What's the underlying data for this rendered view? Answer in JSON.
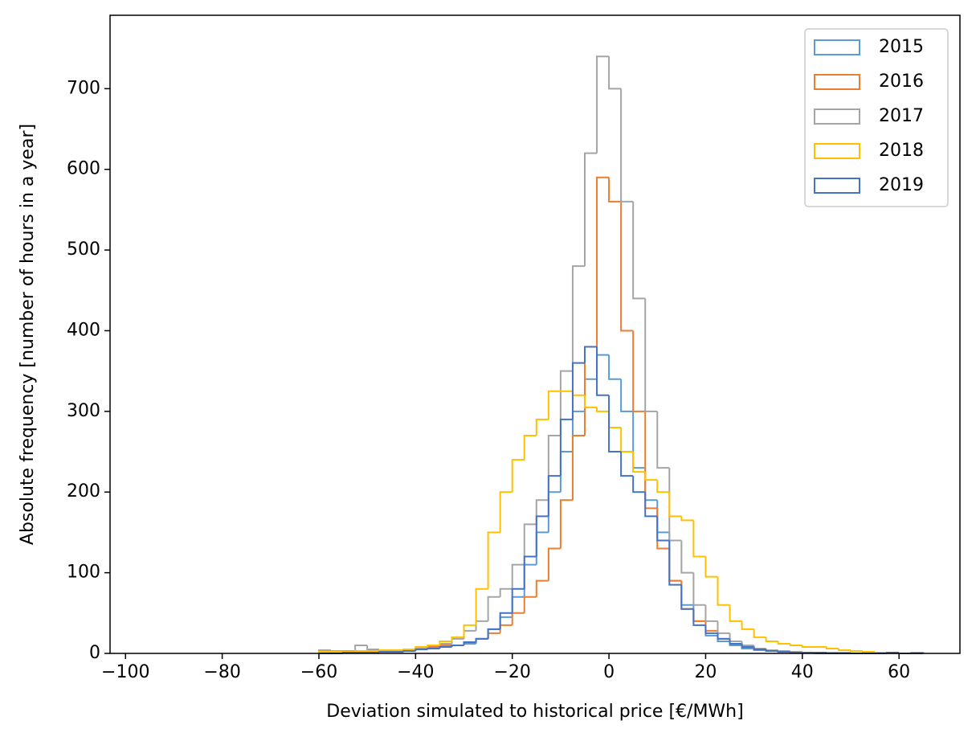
{
  "chart_data": {
    "type": "histogram",
    "xlabel": "Deviation simulated to historical price [€/MWh]",
    "ylabel": "Absolute frequency [number of hours in a year]",
    "bins": [
      -60,
      -57.5,
      -55,
      -52.5,
      -50,
      -47.5,
      -45,
      -42.5,
      -40,
      -37.5,
      -35,
      -32.5,
      -30,
      -27.5,
      -25,
      -22.5,
      -20,
      -17.5,
      -15,
      -12.5,
      -10,
      -7.5,
      -5,
      -2.5,
      0,
      2.5,
      5,
      7.5,
      10,
      12.5,
      15,
      17.5,
      20,
      22.5,
      25,
      27.5,
      30,
      32.5,
      35,
      37.5,
      40,
      42.5,
      45,
      47.5,
      50,
      52.5,
      55,
      57.5,
      60,
      62.5,
      65
    ],
    "series": [
      {
        "name": "2015",
        "color": "#5b9bd5",
        "values": [
          0,
          0,
          1,
          1,
          1,
          2,
          2,
          3,
          5,
          6,
          8,
          10,
          12,
          18,
          30,
          45,
          70,
          110,
          150,
          200,
          250,
          300,
          340,
          370,
          340,
          300,
          230,
          190,
          150,
          90,
          60,
          40,
          22,
          15,
          10,
          6,
          4,
          3,
          2,
          1,
          1,
          0,
          0,
          0,
          0,
          0,
          0,
          0,
          0,
          0
        ]
      },
      {
        "name": "2016",
        "color": "#ed7d31",
        "values": [
          1,
          1,
          1,
          2,
          2,
          2,
          3,
          4,
          6,
          8,
          10,
          10,
          14,
          18,
          25,
          35,
          50,
          70,
          90,
          130,
          190,
          270,
          380,
          590,
          560,
          400,
          300,
          180,
          130,
          90,
          55,
          40,
          28,
          18,
          12,
          8,
          5,
          3,
          2,
          1,
          1,
          1,
          0,
          0,
          0,
          0,
          0,
          0,
          0,
          0
        ]
      },
      {
        "name": "2017",
        "color": "#a5a5a5",
        "values": [
          4,
          3,
          3,
          10,
          5,
          3,
          4,
          5,
          7,
          10,
          12,
          18,
          28,
          40,
          70,
          80,
          110,
          160,
          190,
          270,
          350,
          480,
          620,
          740,
          700,
          560,
          440,
          300,
          230,
          140,
          100,
          60,
          40,
          25,
          15,
          10,
          6,
          4,
          3,
          2,
          1,
          1,
          1,
          1,
          0,
          0,
          0,
          0,
          0,
          1
        ]
      },
      {
        "name": "2018",
        "color": "#ffc000",
        "values": [
          2,
          2,
          2,
          3,
          3,
          4,
          4,
          5,
          8,
          10,
          15,
          20,
          35,
          80,
          150,
          200,
          240,
          270,
          290,
          325,
          325,
          320,
          305,
          300,
          280,
          250,
          225,
          215,
          200,
          170,
          165,
          120,
          95,
          60,
          40,
          30,
          20,
          15,
          12,
          10,
          8,
          8,
          6,
          4,
          3,
          2,
          1,
          1,
          0,
          0
        ]
      },
      {
        "name": "2019",
        "color": "#4472c4",
        "values": [
          0,
          0,
          1,
          1,
          1,
          2,
          2,
          3,
          5,
          6,
          8,
          10,
          14,
          18,
          30,
          50,
          80,
          120,
          170,
          220,
          290,
          360,
          380,
          320,
          250,
          220,
          200,
          170,
          140,
          85,
          55,
          35,
          25,
          18,
          12,
          8,
          5,
          3,
          2,
          1,
          1,
          1,
          0,
          0,
          0,
          0,
          0,
          1,
          0,
          0
        ]
      }
    ],
    "xlim": [
      -103.2,
      72.6
    ],
    "ylim": [
      0,
      791
    ],
    "xticks": [
      {
        "value": -100,
        "label": "−100"
      },
      {
        "value": -80,
        "label": "−80"
      },
      {
        "value": -60,
        "label": "−60"
      },
      {
        "value": -40,
        "label": "−40"
      },
      {
        "value": -20,
        "label": "−20"
      },
      0,
      20,
      40,
      60
    ],
    "yticks": [
      0,
      100,
      200,
      300,
      400,
      500,
      600,
      700
    ],
    "legend": "upper right"
  }
}
